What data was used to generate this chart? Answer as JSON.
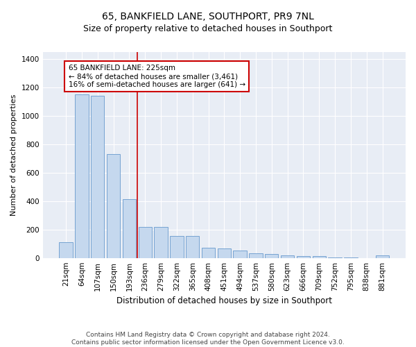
{
  "title": "65, BANKFIELD LANE, SOUTHPORT, PR9 7NL",
  "subtitle": "Size of property relative to detached houses in Southport",
  "xlabel": "Distribution of detached houses by size in Southport",
  "ylabel": "Number of detached properties",
  "categories": [
    "21sqm",
    "64sqm",
    "107sqm",
    "150sqm",
    "193sqm",
    "236sqm",
    "279sqm",
    "322sqm",
    "365sqm",
    "408sqm",
    "451sqm",
    "494sqm",
    "537sqm",
    "580sqm",
    "623sqm",
    "666sqm",
    "709sqm",
    "752sqm",
    "795sqm",
    "838sqm",
    "881sqm"
  ],
  "values": [
    110,
    1150,
    1140,
    730,
    415,
    220,
    218,
    155,
    155,
    72,
    65,
    50,
    32,
    28,
    20,
    15,
    15,
    5,
    5,
    0,
    18
  ],
  "bar_color": "#c5d8ee",
  "bar_edge_color": "#6699cc",
  "vline_x_index": 4.5,
  "vline_color": "#cc0000",
  "annotation_line1": "65 BANKFIELD LANE: 225sqm",
  "annotation_line2": "← 84% of detached houses are smaller (3,461)",
  "annotation_line3": "16% of semi-detached houses are larger (641) →",
  "annotation_box_color": "white",
  "annotation_box_edge_color": "#cc0000",
  "ylim": [
    0,
    1450
  ],
  "yticks": [
    0,
    200,
    400,
    600,
    800,
    1000,
    1200,
    1400
  ],
  "plot_bg_color": "#e8edf5",
  "footer_line1": "Contains HM Land Registry data © Crown copyright and database right 2024.",
  "footer_line2": "Contains public sector information licensed under the Open Government Licence v3.0.",
  "title_fontsize": 10,
  "subtitle_fontsize": 9,
  "xlabel_fontsize": 8.5,
  "ylabel_fontsize": 8,
  "tick_fontsize": 7.5,
  "footer_fontsize": 6.5,
  "ann_fontsize": 7.5
}
